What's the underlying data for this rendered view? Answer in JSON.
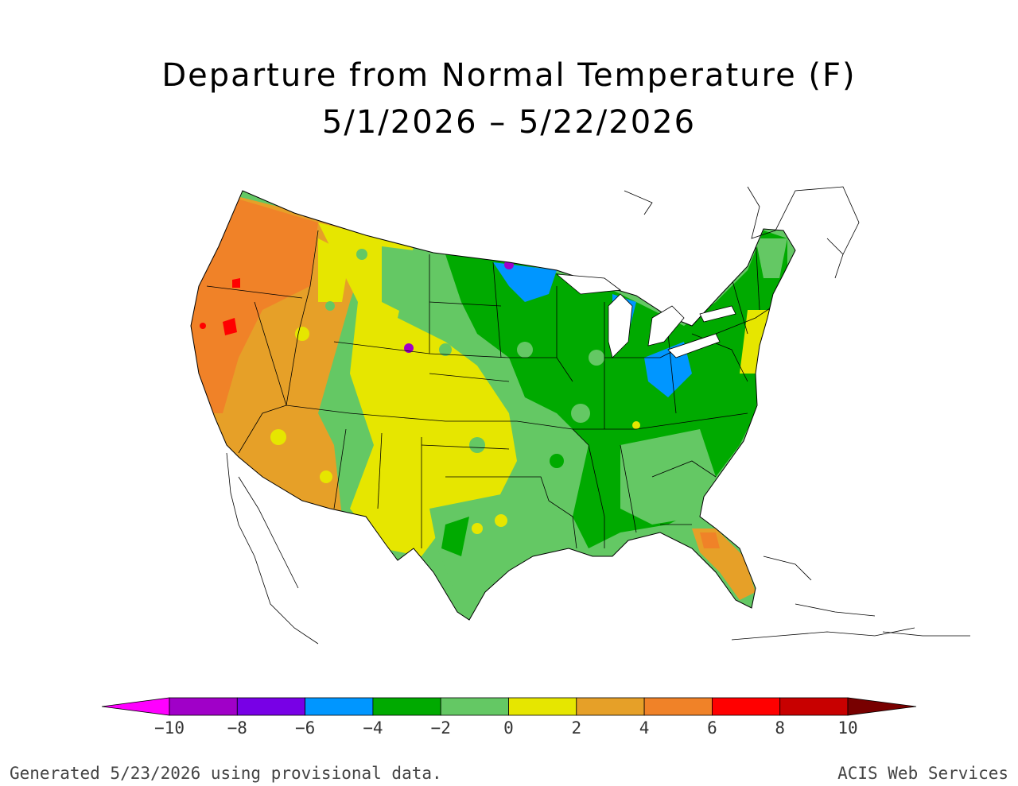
{
  "title": "Departure from Normal Temperature (F)",
  "subtitle": "5/1/2026 – 5/22/2026",
  "footer_left": "Generated 5/23/2026 using provisional data.",
  "footer_right": "ACIS Web Services",
  "legend": {
    "tick_labels": [
      "−10",
      "−8",
      "−6",
      "−4",
      "−2",
      "0",
      "2",
      "4",
      "6",
      "8",
      "10"
    ],
    "colors": [
      "#ff00ff",
      "#a000c8",
      "#7800e6",
      "#0096ff",
      "#00aa00",
      "#64c864",
      "#e6e600",
      "#e6a028",
      "#f08228",
      "#ff0000",
      "#c80000",
      "#780000"
    ]
  },
  "map_regions": [
    {
      "region": "Pacific Northwest",
      "level_f": 4
    },
    {
      "region": "California/Nevada",
      "level_f": 4
    },
    {
      "region": "Northern Rockies",
      "level_f": 2
    },
    {
      "region": "Southwest",
      "level_f": 4
    },
    {
      "region": "Southern Plains",
      "level_f": 0
    },
    {
      "region": "Northern Plains",
      "level_f": -2
    },
    {
      "region": "Upper Midwest",
      "level_f": -4
    },
    {
      "region": "Great Lakes/Ohio Valley",
      "level_f": -4
    },
    {
      "region": "Southeast",
      "level_f": -2
    },
    {
      "region": "Texas Gulf",
      "level_f": -2
    },
    {
      "region": "Northeast",
      "level_f": -2
    },
    {
      "region": "Florida",
      "level_f": 4
    }
  ]
}
